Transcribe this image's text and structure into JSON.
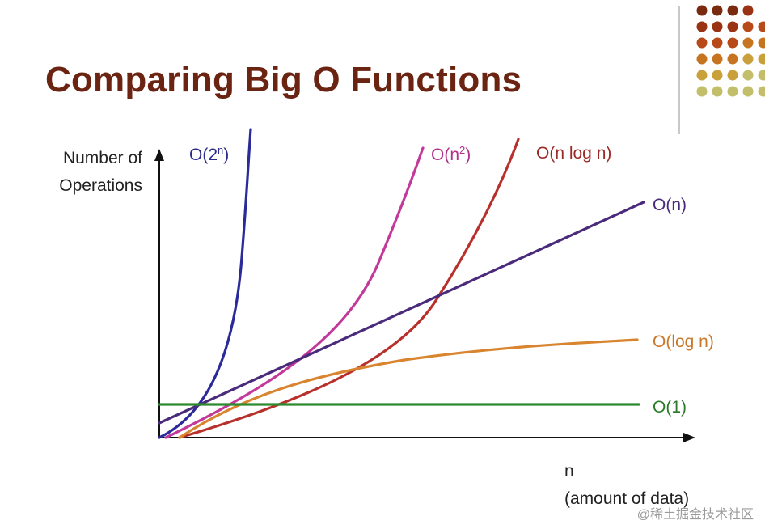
{
  "slide": {
    "title": "Comparing Big O Functions",
    "title_color": "#6b2412",
    "accent_divider_color": "#c8c8c8",
    "dot_colors": [
      "#7a2a0e",
      "#9a3314",
      "#b84a1a",
      "#c6741f",
      "#c9a03a",
      "#c3be6a"
    ]
  },
  "chart_data": {
    "type": "line",
    "title": "Comparing Big O Functions",
    "ylabel_lines": [
      "Number of",
      "Operations"
    ],
    "xlabel_lines": [
      "n",
      "(amount of data)"
    ],
    "ticks": false,
    "series": [
      {
        "name": "O(2",
        "sup": "n",
        "suffix": ")",
        "color": "#2b2a9a",
        "label_color": "#2b2a8a"
      },
      {
        "name": "O(n",
        "sup": "2",
        "suffix": ")",
        "color": "#c2399a",
        "label_color": "#b0308c"
      },
      {
        "name": "O(n log n)",
        "sup": "",
        "suffix": "",
        "color": "#b8302c",
        "label_color": "#9a2a26"
      },
      {
        "name": "O(n)",
        "sup": "",
        "suffix": "",
        "color": "#4a2a7a",
        "label_color": "#4a2a7a"
      },
      {
        "name": "O(log n)",
        "sup": "",
        "suffix": "",
        "color": "#d9842e",
        "label_color": "#c9782a"
      },
      {
        "name": "O(1)",
        "sup": "",
        "suffix": "",
        "color": "#2e8a2e",
        "label_color": "#2a7a2a"
      }
    ]
  },
  "watermark": "@稀土掘金技术社区"
}
